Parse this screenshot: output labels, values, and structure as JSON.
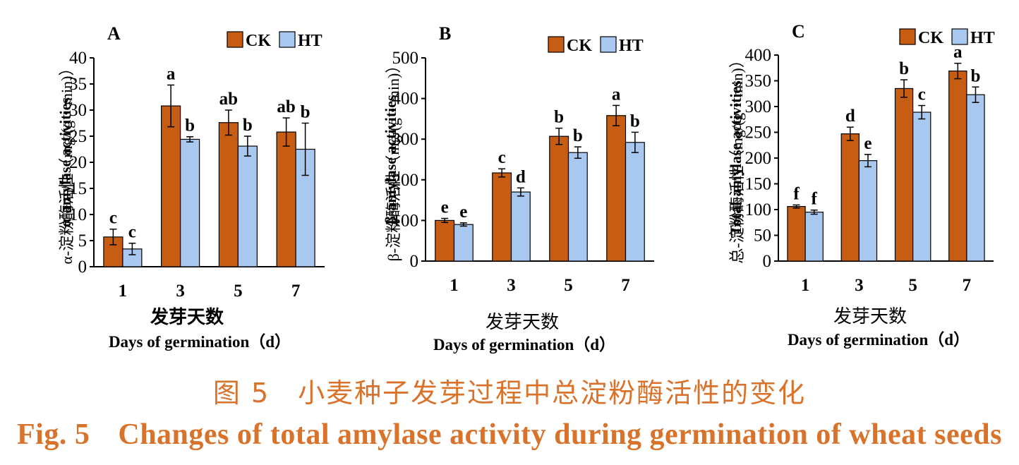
{
  "chart_data": [
    {
      "type": "bar",
      "panel": "A",
      "categories": [
        "1",
        "3",
        "5",
        "7"
      ],
      "series": [
        {
          "name": "CK",
          "color": "#c65d12",
          "values": [
            5.7,
            30.8,
            27.6,
            25.8
          ],
          "errors": [
            1.5,
            4.0,
            2.4,
            2.7
          ],
          "letters": [
            "c",
            "a",
            "ab",
            "ab"
          ]
        },
        {
          "name": "HT",
          "color": "#a9c8f0",
          "values": [
            3.4,
            24.4,
            23.1,
            22.5
          ],
          "errors": [
            1.1,
            0.5,
            1.9,
            5.0
          ],
          "letters": [
            "c",
            "b",
            "b",
            "b"
          ]
        }
      ],
      "ylim": [
        0,
        40
      ],
      "yticks": [
        "0",
        "5",
        "10",
        "15",
        "20",
        "25",
        "30",
        "35",
        "40"
      ],
      "ylabel_cn": "α-淀粉酶活性（mg/(g・min)）",
      "ylabel_en": "α-amylase activities",
      "xlabel_cn": "发芽天数",
      "xlabel_en": "Days of germination（d）",
      "legend": "top-right"
    },
    {
      "type": "bar",
      "panel": "B",
      "categories": [
        "1",
        "3",
        "5",
        "7"
      ],
      "series": [
        {
          "name": "CK",
          "color": "#c65d12",
          "values": [
            100,
            217,
            307,
            358
          ],
          "errors": [
            5,
            10,
            20,
            25
          ],
          "letters": [
            "e",
            "c",
            "b",
            "a"
          ]
        },
        {
          "name": "HT",
          "color": "#a9c8f0",
          "values": [
            90,
            170,
            267,
            292
          ],
          "errors": [
            4,
            10,
            14,
            25
          ],
          "letters": [
            "e",
            "d",
            "b",
            "b"
          ]
        }
      ],
      "ylim": [
        0,
        500
      ],
      "yticks": [
        "0",
        "100",
        "200",
        "300",
        "400",
        "500"
      ],
      "ylabel_cn": "β-淀粉酶活性（mg/(g・min)）",
      "ylabel_en": "β-amylase activities",
      "xlabel_cn": "发芽天数",
      "xlabel_en": "Days of germination（d）",
      "legend": "top-right"
    },
    {
      "type": "bar",
      "panel": "C",
      "categories": [
        "1",
        "3",
        "5",
        "7"
      ],
      "series": [
        {
          "name": "CK",
          "color": "#c65d12",
          "values": [
            106,
            247,
            335,
            369
          ],
          "errors": [
            3,
            13,
            17,
            15
          ],
          "letters": [
            "f",
            "d",
            "b",
            "a"
          ]
        },
        {
          "name": "HT",
          "color": "#a9c8f0",
          "values": [
            95,
            195,
            289,
            323
          ],
          "errors": [
            4,
            12,
            13,
            15
          ],
          "letters": [
            "f",
            "e",
            "c",
            "b"
          ]
        }
      ],
      "ylim": [
        0,
        400
      ],
      "yticks": [
        "0",
        "50",
        "100",
        "150",
        "200",
        "250",
        "300",
        "350",
        "400"
      ],
      "ylabel_cn": "总-淀粉酶活性（mg/(g・min)）",
      "ylabel_en": "Total-amylase activities",
      "xlabel_cn": "发芽天数",
      "xlabel_en": "Days of germination（d）",
      "legend": "top-right"
    }
  ],
  "caption": {
    "cn_fig": "图 5",
    "cn_text": "小麦种子发芽过程中总淀粉酶活性的变化",
    "en_fig": "Fig. 5",
    "en_text": "Changes of total amylase activity during germination of wheat seeds"
  }
}
